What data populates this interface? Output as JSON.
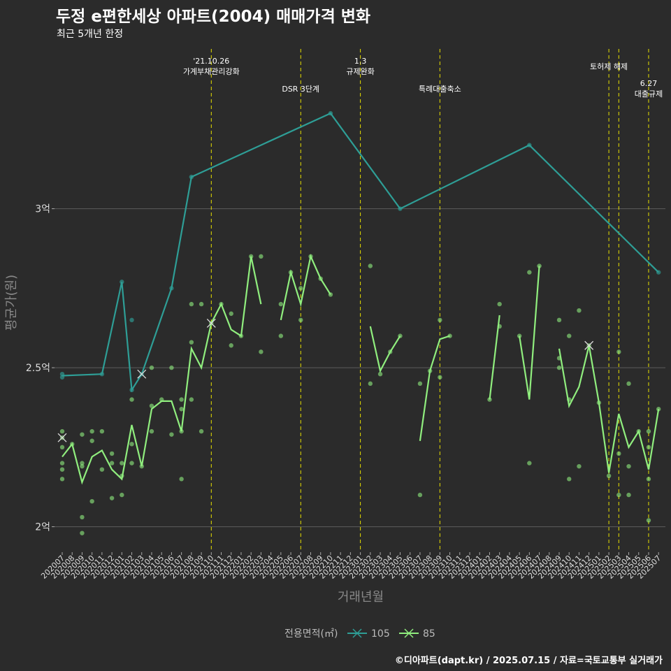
{
  "chart_data": {
    "type": "line",
    "title": "두정 e편한세상 아파트(2004) 매매가격 변화",
    "subtitle": "최근 5개년 한정",
    "xlabel": "거래년월",
    "ylabel": "평균가(원)",
    "caption": "©디아파트(dapt.kr) / 2025.07.15 / 자료=국토교통부 실거래가",
    "categories": [
      "202007",
      "202008",
      "202009",
      "202010",
      "202011",
      "202012",
      "202101",
      "202102",
      "202103",
      "202104",
      "202105",
      "202106",
      "202107",
      "202108",
      "202109",
      "202110",
      "202111",
      "202112",
      "202201",
      "202202",
      "202203",
      "202204",
      "202205",
      "202206",
      "202207",
      "202208",
      "202209",
      "202210",
      "202211",
      "202212",
      "202301",
      "202302",
      "202303",
      "202304",
      "202305",
      "202306",
      "202307",
      "202308",
      "202309",
      "202310",
      "202311",
      "202312",
      "202401",
      "202402",
      "202403",
      "202404",
      "202405",
      "202406",
      "202407",
      "202408",
      "202409",
      "202410",
      "202411",
      "202412",
      "202501",
      "202502",
      "202503",
      "202504",
      "202505",
      "202506",
      "202507"
    ],
    "ylim": [
      1.92,
      3.52
    ],
    "yticks": [
      {
        "value": 2.0,
        "label": "2억"
      },
      {
        "value": 2.5,
        "label": "2.5억"
      },
      {
        "value": 3.0,
        "label": "3억"
      }
    ],
    "legend": {
      "title": "전용면적(㎡)",
      "position": "bottom"
    },
    "series": [
      {
        "name": "105",
        "color": "#2e9e96",
        "line": [
          [
            0,
            2.475
          ],
          [
            4,
            2.48
          ],
          [
            6,
            2.77
          ],
          [
            7,
            2.43
          ],
          [
            8,
            2.48
          ],
          [
            11,
            2.75
          ],
          [
            13,
            3.1
          ],
          [
            27,
            3.3
          ],
          [
            34,
            3.0
          ],
          [
            47,
            3.2
          ],
          [
            60,
            2.8
          ]
        ],
        "points": [
          [
            0,
            2.47
          ],
          [
            0,
            2.48
          ],
          [
            4,
            2.48
          ],
          [
            6,
            2.77
          ],
          [
            7,
            2.65
          ],
          [
            7,
            2.43
          ],
          [
            8,
            2.48
          ],
          [
            11,
            2.75
          ],
          [
            13,
            3.1
          ],
          [
            27,
            3.3
          ],
          [
            34,
            3.0
          ],
          [
            47,
            3.2
          ],
          [
            60,
            2.8
          ]
        ],
        "x_marks": [
          [
            8,
            2.48
          ]
        ]
      },
      {
        "name": "85",
        "color": "#90ee7e",
        "segments": [
          [
            [
              0,
              2.22
            ],
            [
              1,
              2.26
            ],
            [
              2,
              2.14
            ],
            [
              3,
              2.22
            ],
            [
              4,
              2.24
            ],
            [
              5,
              2.18
            ],
            [
              6,
              2.15
            ],
            [
              7,
              2.32
            ],
            [
              8,
              2.19
            ],
            [
              9,
              2.37
            ],
            [
              10,
              2.395
            ],
            [
              11,
              2.395
            ],
            [
              12,
              2.3
            ],
            [
              13,
              2.56
            ],
            [
              14,
              2.5
            ],
            [
              15,
              2.64
            ],
            [
              16,
              2.7
            ],
            [
              17,
              2.62
            ],
            [
              18,
              2.6
            ],
            [
              19,
              2.85
            ],
            [
              20,
              2.7
            ]
          ],
          [
            [
              22,
              2.65
            ],
            [
              23,
              2.8
            ],
            [
              24,
              2.7
            ],
            [
              25,
              2.85
            ],
            [
              26,
              2.78
            ],
            [
              27,
              2.73
            ]
          ],
          [
            [
              31,
              2.63
            ],
            [
              32,
              2.49
            ],
            [
              33,
              2.55
            ],
            [
              34,
              2.6
            ]
          ],
          [
            [
              36,
              2.27
            ],
            [
              37,
              2.49
            ],
            [
              38,
              2.59
            ],
            [
              39,
              2.6
            ]
          ],
          [
            [
              43,
              2.4
            ],
            [
              44,
              2.665
            ]
          ],
          [
            [
              46,
              2.6
            ],
            [
              47,
              2.4
            ],
            [
              48,
              2.82
            ]
          ],
          [
            [
              50,
              2.56
            ],
            [
              51,
              2.38
            ],
            [
              52,
              2.44
            ],
            [
              53,
              2.57
            ],
            [
              54,
              2.39
            ],
            [
              55,
              2.17
            ],
            [
              56,
              2.355
            ],
            [
              57,
              2.25
            ],
            [
              58,
              2.3
            ],
            [
              59,
              2.18
            ],
            [
              60,
              2.37
            ]
          ]
        ],
        "points": [
          [
            0,
            2.3
          ],
          [
            0,
            2.25
          ],
          [
            0,
            2.2
          ],
          [
            0,
            2.18
          ],
          [
            0,
            2.15
          ],
          [
            0,
            2.28
          ],
          [
            1,
            2.26
          ],
          [
            2,
            2.29
          ],
          [
            2,
            2.2
          ],
          [
            2,
            2.19
          ],
          [
            2,
            2.03
          ],
          [
            2,
            1.98
          ],
          [
            3,
            2.3
          ],
          [
            3,
            2.27
          ],
          [
            3,
            2.08
          ],
          [
            4,
            2.3
          ],
          [
            4,
            2.18
          ],
          [
            5,
            2.23
          ],
          [
            5,
            2.2
          ],
          [
            5,
            2.09
          ],
          [
            6,
            2.2
          ],
          [
            6,
            2.16
          ],
          [
            6,
            2.1
          ],
          [
            7,
            2.4
          ],
          [
            7,
            2.26
          ],
          [
            7,
            2.2
          ],
          [
            8,
            2.19
          ],
          [
            9,
            2.5
          ],
          [
            9,
            2.38
          ],
          [
            9,
            2.3
          ],
          [
            10,
            2.4
          ],
          [
            11,
            2.5
          ],
          [
            11,
            2.29
          ],
          [
            12,
            2.4
          ],
          [
            12,
            2.37
          ],
          [
            12,
            2.3
          ],
          [
            12,
            2.15
          ],
          [
            13,
            2.7
          ],
          [
            13,
            2.58
          ],
          [
            13,
            2.4
          ],
          [
            14,
            2.7
          ],
          [
            14,
            2.3
          ],
          [
            15,
            2.64
          ],
          [
            16,
            2.7
          ],
          [
            17,
            2.67
          ],
          [
            17,
            2.57
          ],
          [
            18,
            2.6
          ],
          [
            19,
            2.85
          ],
          [
            20,
            2.85
          ],
          [
            20,
            2.55
          ],
          [
            22,
            2.7
          ],
          [
            22,
            2.6
          ],
          [
            23,
            2.8
          ],
          [
            24,
            2.75
          ],
          [
            24,
            2.65
          ],
          [
            25,
            2.85
          ],
          [
            26,
            2.78
          ],
          [
            27,
            2.73
          ],
          [
            31,
            2.82
          ],
          [
            31,
            2.45
          ],
          [
            32,
            2.48
          ],
          [
            33,
            2.55
          ],
          [
            34,
            2.6
          ],
          [
            36,
            2.45
          ],
          [
            36,
            2.1
          ],
          [
            37,
            2.49
          ],
          [
            38,
            2.65
          ],
          [
            38,
            2.47
          ],
          [
            39,
            2.6
          ],
          [
            43,
            2.4
          ],
          [
            44,
            2.7
          ],
          [
            44,
            2.63
          ],
          [
            46,
            2.6
          ],
          [
            47,
            2.8
          ],
          [
            47,
            2.2
          ],
          [
            48,
            2.82
          ],
          [
            50,
            2.65
          ],
          [
            50,
            2.53
          ],
          [
            50,
            2.5
          ],
          [
            51,
            2.6
          ],
          [
            51,
            2.4
          ],
          [
            51,
            2.15
          ],
          [
            52,
            2.68
          ],
          [
            52,
            2.19
          ],
          [
            53,
            2.57
          ],
          [
            54,
            2.39
          ],
          [
            55,
            2.16
          ],
          [
            56,
            2.55
          ],
          [
            56,
            2.23
          ],
          [
            56,
            2.1
          ],
          [
            57,
            2.45
          ],
          [
            57,
            2.19
          ],
          [
            57,
            2.1
          ],
          [
            58,
            2.3
          ],
          [
            59,
            2.3
          ],
          [
            59,
            2.25
          ],
          [
            59,
            2.15
          ],
          [
            59,
            2.02
          ],
          [
            60,
            2.37
          ]
        ],
        "x_marks": [
          [
            0,
            2.28
          ],
          [
            15,
            2.64
          ],
          [
            53,
            2.57
          ]
        ]
      }
    ],
    "annotations": [
      {
        "x": 15,
        "lines": [
          "'21.10.26",
          "가계부채관리강화"
        ],
        "level": 0
      },
      {
        "x": 24,
        "lines": [
          "DSR 3단계"
        ],
        "level": 2
      },
      {
        "x": 30,
        "lines": [
          "1.3",
          "규제완화"
        ],
        "level": 0
      },
      {
        "x": 38,
        "lines": [
          "특례대출축소"
        ],
        "level": 2
      },
      {
        "x": 55,
        "lines": [
          "토허제 해제"
        ],
        "level": 1
      },
      {
        "x": 56,
        "lines": [],
        "level": 0
      },
      {
        "x": 59,
        "lines": [
          "6.27",
          "대출규제"
        ],
        "level": 3
      }
    ]
  }
}
